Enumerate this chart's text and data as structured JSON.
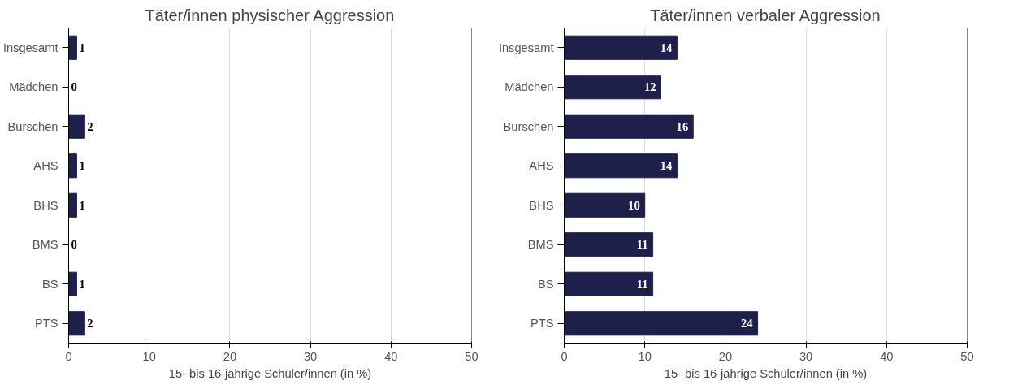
{
  "chart_data": [
    {
      "type": "bar",
      "orientation": "horizontal",
      "title": "Täter/innen physischer Aggression",
      "xlabel": "15- bis 16-jährige Schüler/innen (in %)",
      "categories": [
        "Insgesamt",
        "Mädchen",
        "Burschen",
        "AHS",
        "BHS",
        "BMS",
        "BS",
        "PTS"
      ],
      "values": [
        1,
        0,
        2,
        1,
        1,
        0,
        1,
        2
      ],
      "color": "#1e1f4b",
      "xlim": [
        0,
        50
      ],
      "xticks": [
        0,
        10,
        20,
        30,
        40,
        50
      ],
      "grid": "x",
      "data_labels": true
    },
    {
      "type": "bar",
      "orientation": "horizontal",
      "title": "Täter/innen verbaler Aggression",
      "xlabel": "15- bis 16-jährige Schüler/innen (in %)",
      "categories": [
        "Insgesamt",
        "Mädchen",
        "Burschen",
        "AHS",
        "BHS",
        "BMS",
        "BS",
        "PTS"
      ],
      "values": [
        14,
        12,
        16,
        14,
        10,
        11,
        11,
        24
      ],
      "color": "#1e1f4b",
      "xlim": [
        0,
        50
      ],
      "xticks": [
        0,
        10,
        20,
        30,
        40,
        50
      ],
      "grid": "x",
      "data_labels": true
    }
  ]
}
